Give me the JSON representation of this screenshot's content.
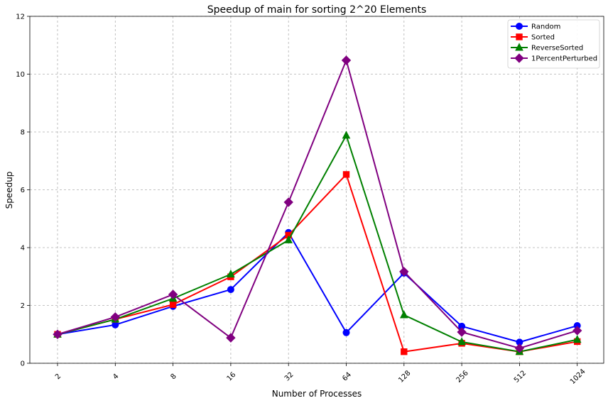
{
  "chart_data": {
    "type": "line",
    "title": "Speedup of main for sorting 2^20 Elements",
    "xlabel": "Number of Processes",
    "ylabel": "Speedup",
    "categories": [
      "2",
      "4",
      "8",
      "16",
      "32",
      "64",
      "128",
      "256",
      "512",
      "1024"
    ],
    "ylim": [
      0,
      12
    ],
    "yticks": [
      "0",
      "2",
      "4",
      "6",
      "8",
      "10",
      "12"
    ],
    "grid": true,
    "legend_position": "top-right",
    "series": [
      {
        "name": "Random",
        "color": "#0000ff",
        "marker": "circle",
        "values": [
          1.0,
          1.33,
          1.97,
          2.55,
          4.52,
          1.06,
          3.12,
          1.28,
          0.73,
          1.3
        ]
      },
      {
        "name": "Sorted",
        "color": "#ff0000",
        "marker": "square",
        "values": [
          1.0,
          1.52,
          2.03,
          2.99,
          4.43,
          6.53,
          0.4,
          0.69,
          0.4,
          0.75
        ]
      },
      {
        "name": "ReverseSorted",
        "color": "#008000",
        "marker": "triangle",
        "values": [
          1.0,
          1.52,
          2.24,
          3.08,
          4.26,
          7.88,
          1.67,
          0.74,
          0.4,
          0.82
        ]
      },
      {
        "name": "1PercentPerturbed",
        "color": "#800080",
        "marker": "diamond",
        "values": [
          1.0,
          1.6,
          2.38,
          0.88,
          5.57,
          10.48,
          3.17,
          1.08,
          0.52,
          1.13
        ]
      }
    ]
  }
}
